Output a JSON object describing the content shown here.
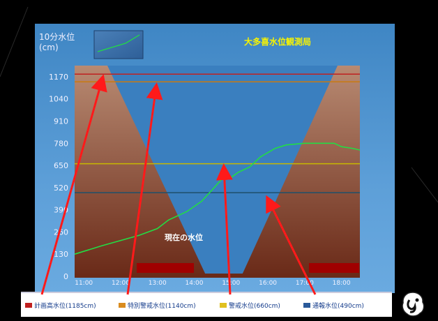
{
  "chart_data": {
    "type": "area",
    "title": "大多喜水位観測局",
    "ylabel_line1": "10分水位",
    "ylabel_line2": "(cm)",
    "yticks": [
      1170,
      1040,
      910,
      780,
      650,
      520,
      390,
      260,
      130,
      0
    ],
    "ylim": [
      0,
      1235
    ],
    "xticks": [
      "11:00",
      "12:00",
      "13:00",
      "14:00",
      "15:00",
      "16:00",
      "17:00",
      "18:00"
    ],
    "xlim": [
      10.75,
      18.5
    ],
    "annotation": "現在の水位",
    "thresholds": [
      {
        "name": "計画高水位(1185cm)",
        "value": 1185,
        "color": "#c02020"
      },
      {
        "name": "特別警戒水位(1140cm)",
        "value": 1140,
        "color": "#c87a10"
      },
      {
        "name": "警戒水位(660cm)",
        "value": 660,
        "color": "#c8b800"
      },
      {
        "name": "通報水位(490cm)",
        "value": 490,
        "color": "#1f4f6a"
      }
    ],
    "series": [
      {
        "x": [
          10.75,
          11.5,
          12.5,
          13.0,
          13.3,
          13.8,
          14.2,
          14.5,
          14.75,
          15.0,
          15.2,
          15.5,
          15.8,
          16.2,
          16.5,
          17.0,
          17.5,
          17.8,
          18.0,
          18.3,
          18.5
        ],
        "values": [
          130,
          180,
          240,
          280,
          330,
          380,
          440,
          510,
          570,
          580,
          610,
          640,
          700,
          750,
          770,
          780,
          780,
          780,
          760,
          750,
          740
        ]
      }
    ],
    "grid": false
  },
  "legend_items": [
    {
      "label": "計画高水位(1185cm)",
      "color": "#c02020"
    },
    {
      "label": "特別警戒水位(1140cm)",
      "color": "#d98c20"
    },
    {
      "label": "警戒水位(660cm)",
      "color": "#e0c020"
    },
    {
      "label": "通報水位(490cm)",
      "color": "#2a5a9a"
    }
  ],
  "colors": {
    "terrain_top": "#b07a60",
    "terrain_bottom": "#6a2a18",
    "water": "#3e84c2",
    "level_line": "#22dd44",
    "arrow": "#ff1a1a",
    "box": "#a00000"
  }
}
